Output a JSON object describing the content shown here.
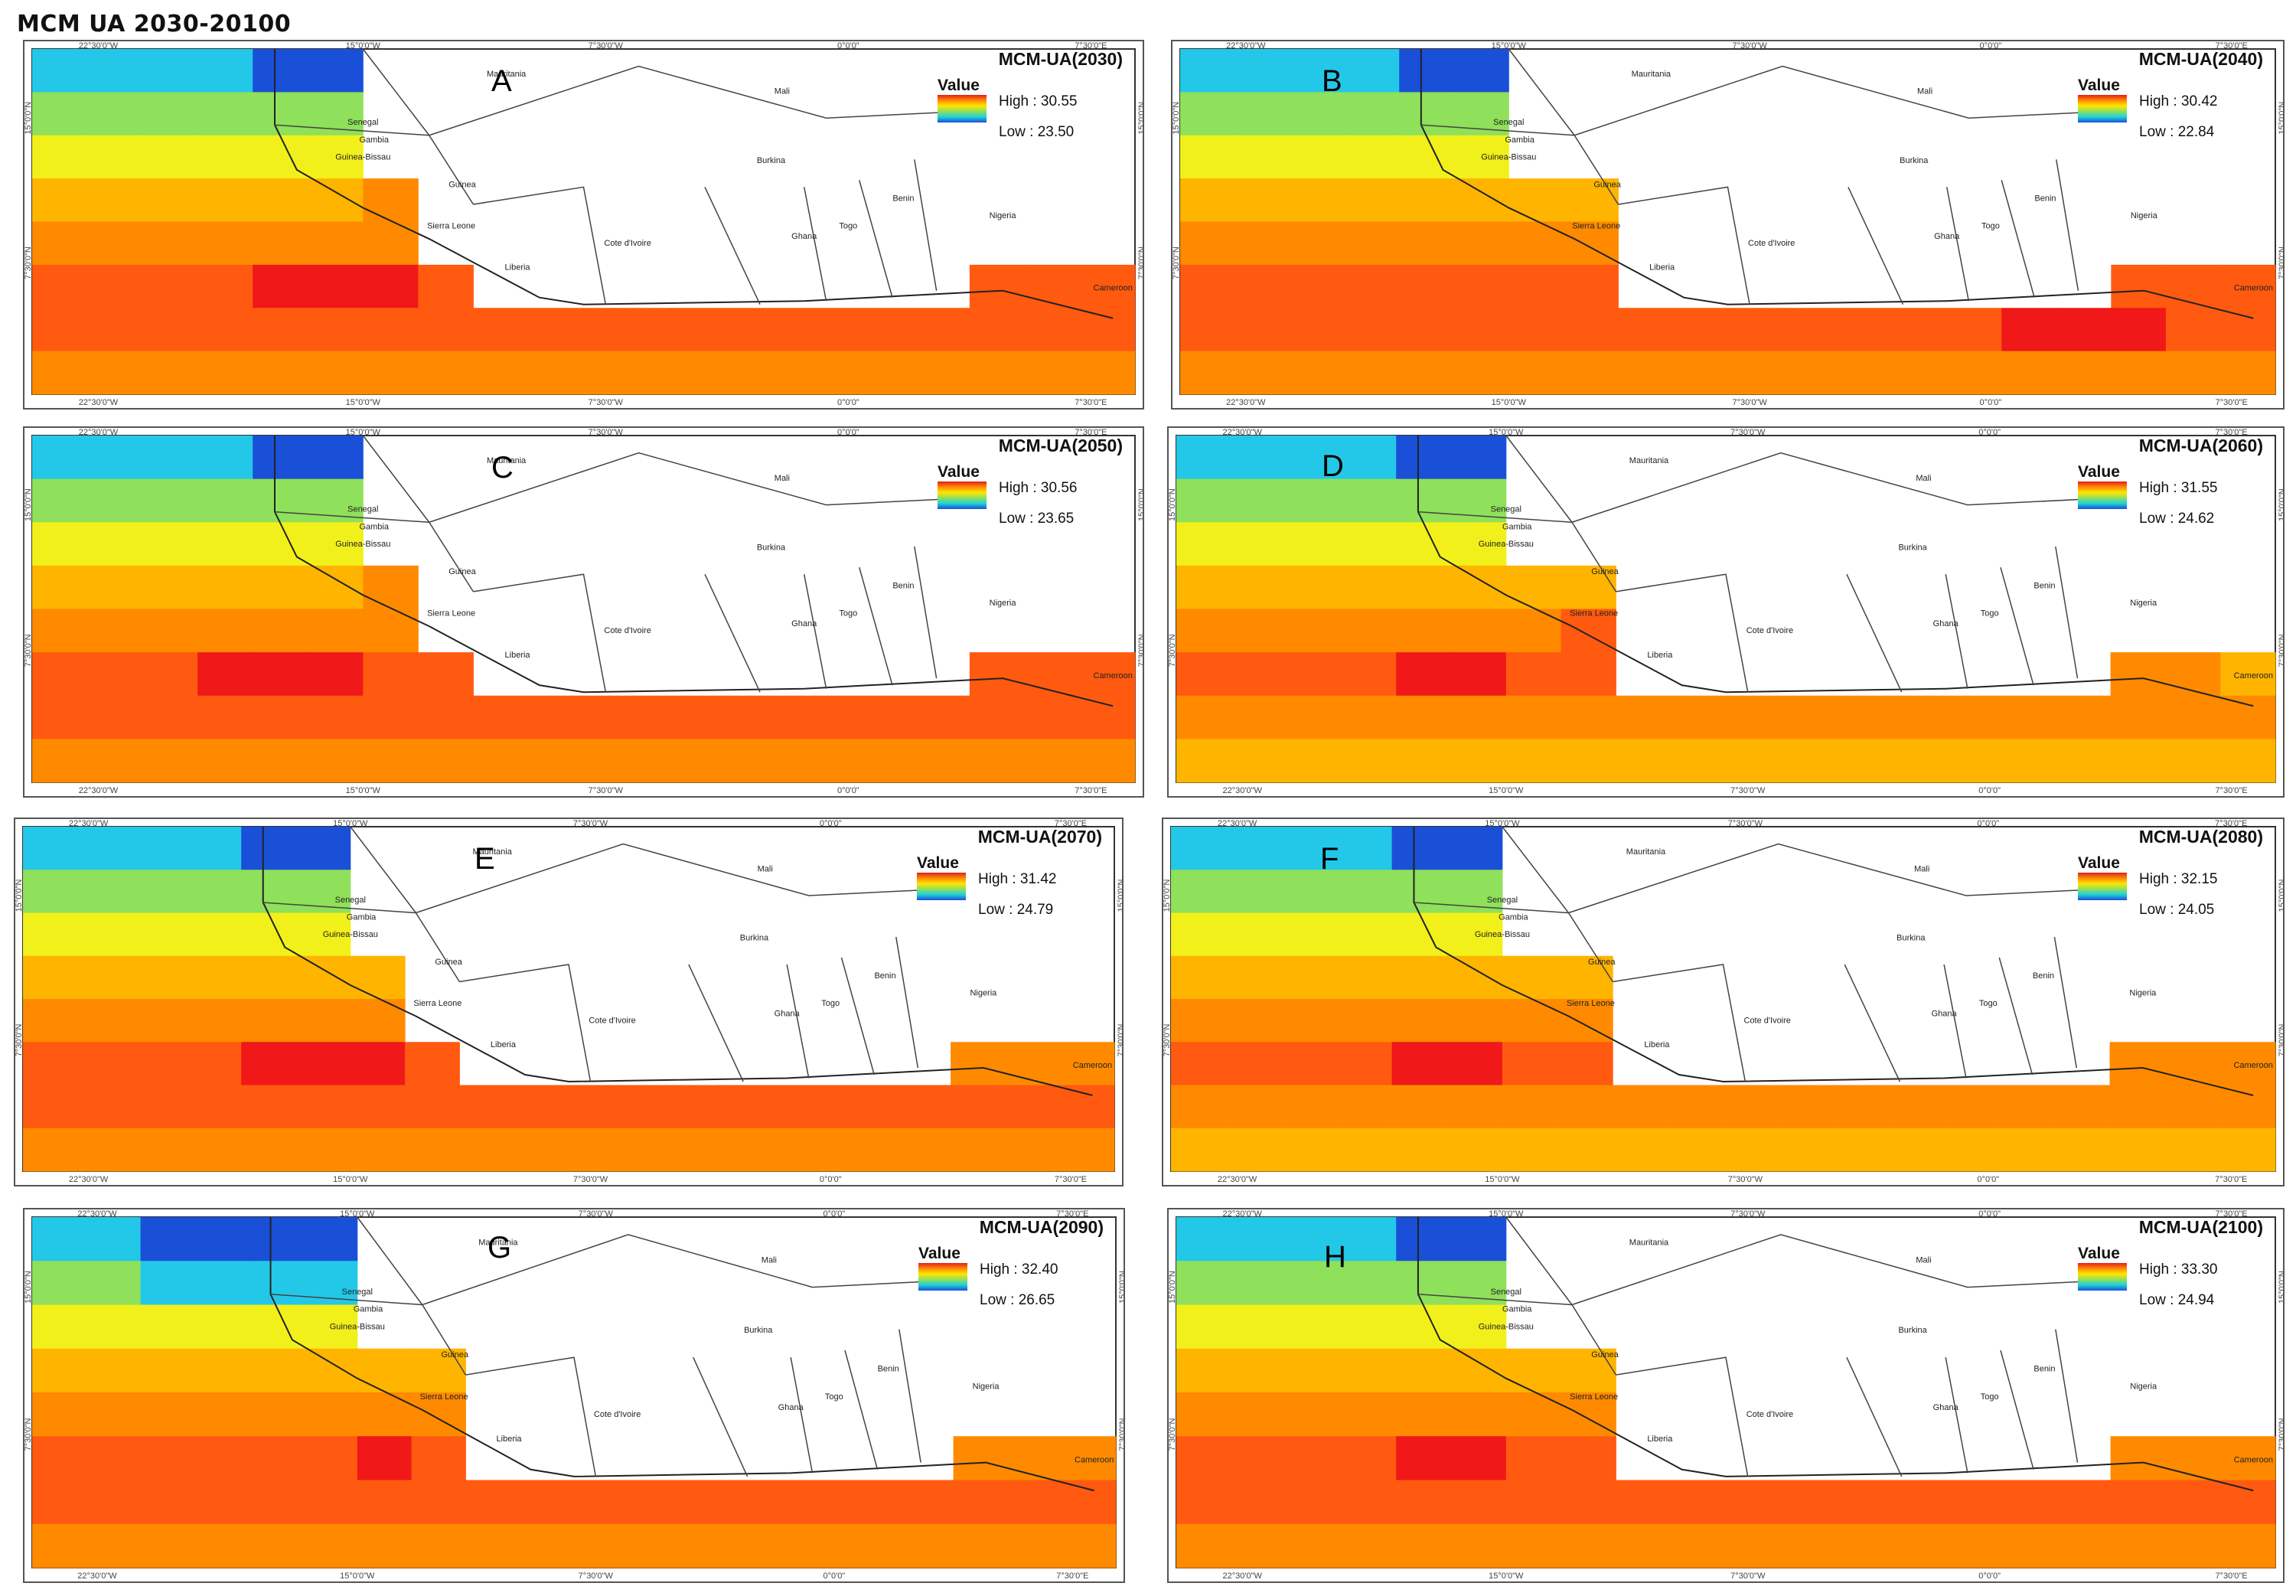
{
  "page_title": "MCM UA 2030-20100",
  "colors": {
    "deep_blue": "#1a4fd8",
    "cyan": "#23c8e8",
    "green": "#8fe05a",
    "yellow": "#f2f01a",
    "orange_light": "#ffb400",
    "orange": "#ff8a00",
    "orange_red": "#ff5a10",
    "red": "#f01818"
  },
  "axis_labels": {
    "lon": [
      "22°30'0\"W",
      "15°0'0\"W",
      "7°30'0\"W",
      "0°0'0\"",
      "7°30'0\"E"
    ],
    "lat": [
      "15°0'0\"N",
      "7°30'0\"N"
    ]
  },
  "country_labels": [
    "Mauritania",
    "Mali",
    "Senegal",
    "Gambia",
    "Guinea-Bissau",
    "Guinea",
    "Sierra Leone",
    "Liberia",
    "Cote d'Ivoire",
    "Burkina",
    "Ghana",
    "Togo",
    "Benin",
    "Nigeria",
    "Cameroon"
  ],
  "panels": [
    {
      "letter": "A",
      "title": "MCM-UA(2030)",
      "legend_label": "Value",
      "high": "High : 30.55",
      "low": "Low : 23.50"
    },
    {
      "letter": "B",
      "title": "MCM-UA(2040)",
      "legend_label": "Value",
      "high": "High : 30.42",
      "low": "Low : 22.84"
    },
    {
      "letter": "C",
      "title": "MCM-UA(2050)",
      "legend_label": "Value",
      "high": "High : 30.56",
      "low": "Low : 23.65"
    },
    {
      "letter": "D",
      "title": "MCM-UA(2060)",
      "legend_label": "Value",
      "high": "High : 31.55",
      "low": "Low : 24.62"
    },
    {
      "letter": "E",
      "title": "MCM-UA(2070)",
      "legend_label": "Value",
      "high": "High : 31.42",
      "low": "Low : 24.79"
    },
    {
      "letter": "F",
      "title": "MCM-UA(2080)",
      "legend_label": "Value",
      "high": "High : 32.15",
      "low": "Low : 24.05"
    },
    {
      "letter": "G",
      "title": "MCM-UA(2090)",
      "legend_label": "Value",
      "high": "High : 32.40",
      "low": "Low : 26.65"
    },
    {
      "letter": "H",
      "title": "MCM-UA(2100)",
      "legend_label": "Value",
      "high": "High : 33.30",
      "low": "Low : 24.94"
    }
  ]
}
